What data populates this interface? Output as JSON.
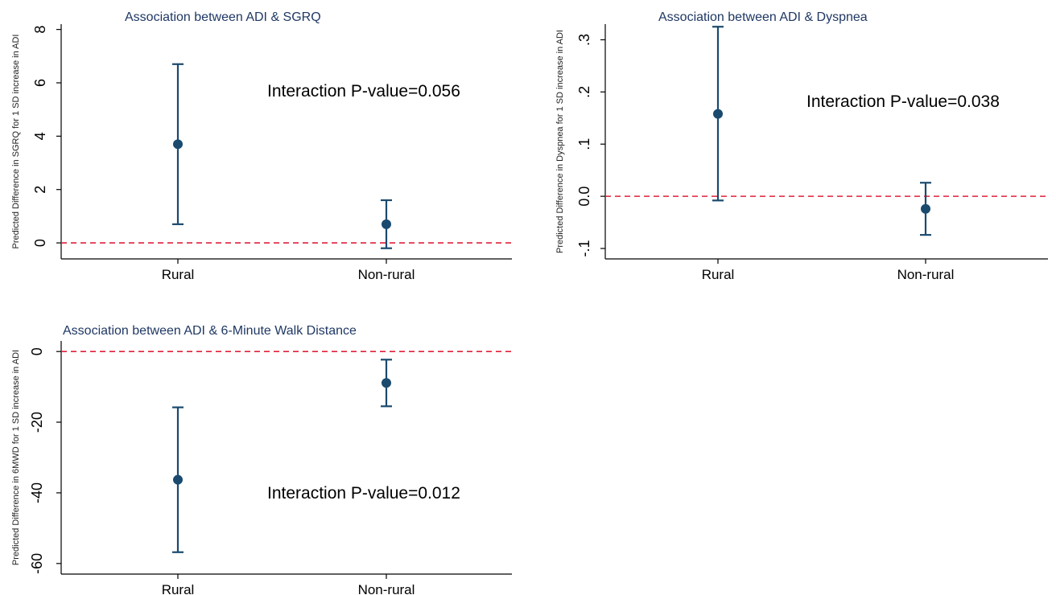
{
  "colors": {
    "marker": "#1a4a6e",
    "reference_line": "#e0203a",
    "title": "#1f3864"
  },
  "chart_data": [
    {
      "type": "scatter",
      "title": "Association between ADI & SGRQ",
      "ylabel": "Predicted Difference in SGRQ for 1 SD increase in ADI",
      "xlabel": "",
      "categories": [
        "Rural",
        "Non-rural"
      ],
      "estimate": [
        3.7,
        0.7
      ],
      "ci_low": [
        0.7,
        -0.2
      ],
      "ci_high": [
        6.7,
        1.6
      ],
      "yticks": [
        0,
        2,
        4,
        6,
        8
      ],
      "ytick_labels": [
        "0",
        "2",
        "4",
        "6",
        "8"
      ],
      "ylim": [
        -0.6,
        8.2
      ],
      "reference_line": 0,
      "annotation": "Interaction P-value=0.056"
    },
    {
      "type": "scatter",
      "title": "Association between ADI & Dyspnea",
      "ylabel": "Predicted Difference in Dyspnea for 1 SD increase in ADI",
      "xlabel": "",
      "categories": [
        "Rural",
        "Non-rural"
      ],
      "estimate": [
        0.158,
        -0.024
      ],
      "ci_low": [
        -0.008,
        -0.074
      ],
      "ci_high": [
        0.325,
        0.026
      ],
      "yticks": [
        -0.1,
        0,
        0.1,
        0.2,
        0.3
      ],
      "ytick_labels": [
        "-.1",
        "0.0",
        ".1",
        ".2",
        ".3"
      ],
      "ylim": [
        -0.12,
        0.33
      ],
      "reference_line": 0,
      "annotation": "Interaction P-value=0.038"
    },
    {
      "type": "scatter",
      "title": "Association between ADI & 6-Minute Walk Distance",
      "ylabel": "Predicted Difference in 6MWD for 1 SD increase in ADI",
      "xlabel": "",
      "categories": [
        "Rural",
        "Non-rural"
      ],
      "estimate": [
        -36.3,
        -8.9
      ],
      "ci_low": [
        -56.8,
        -15.5
      ],
      "ci_high": [
        -15.8,
        -2.3
      ],
      "yticks": [
        -60,
        -40,
        -20,
        0
      ],
      "ytick_labels": [
        "-60",
        "-40",
        "-20",
        "0"
      ],
      "ylim": [
        -63,
        3
      ],
      "reference_line": 0,
      "annotation": "Interaction P-value=0.012"
    }
  ]
}
